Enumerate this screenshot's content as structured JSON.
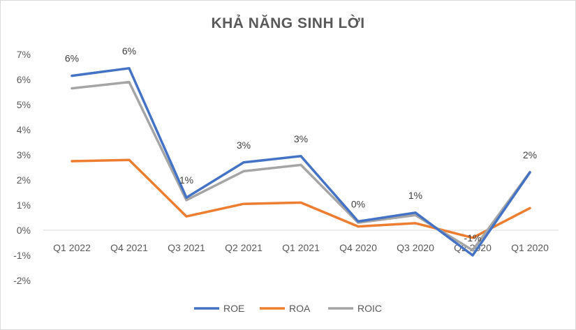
{
  "chart_data": {
    "type": "line",
    "title": "KHẢ NĂNG SINH LỜI",
    "categories": [
      "Q1 2022",
      "Q4 2021",
      "Q3 2021",
      "Q2 2021",
      "Q1 2021",
      "Q4 2020",
      "Q3 2020",
      "Q2 2020",
      "Q1 2020"
    ],
    "series": [
      {
        "name": "ROE",
        "color": "#4472C4",
        "values": [
          6.15,
          6.45,
          1.3,
          2.7,
          2.95,
          0.35,
          0.7,
          -1.0,
          2.3
        ]
      },
      {
        "name": "ROA",
        "color": "#ED7D31",
        "values": [
          2.75,
          2.8,
          0.55,
          1.05,
          1.1,
          0.15,
          0.28,
          -0.3,
          0.88
        ]
      },
      {
        "name": "ROIC",
        "color": "#A5A5A5",
        "values": [
          5.65,
          5.9,
          1.2,
          2.35,
          2.6,
          0.3,
          0.6,
          -0.8,
          2.32
        ]
      }
    ],
    "data_labels": [
      "6%",
      "6%",
      "1%",
      "3%",
      "3%",
      "0%",
      "1%",
      "-1%",
      "2%"
    ],
    "y_ticks": [
      "7%",
      "6%",
      "5%",
      "4%",
      "3%",
      "2%",
      "1%",
      "0%",
      "-1%",
      "-2%"
    ],
    "ylim": [
      -2,
      7
    ],
    "legend_position": "bottom",
    "grid": false
  }
}
